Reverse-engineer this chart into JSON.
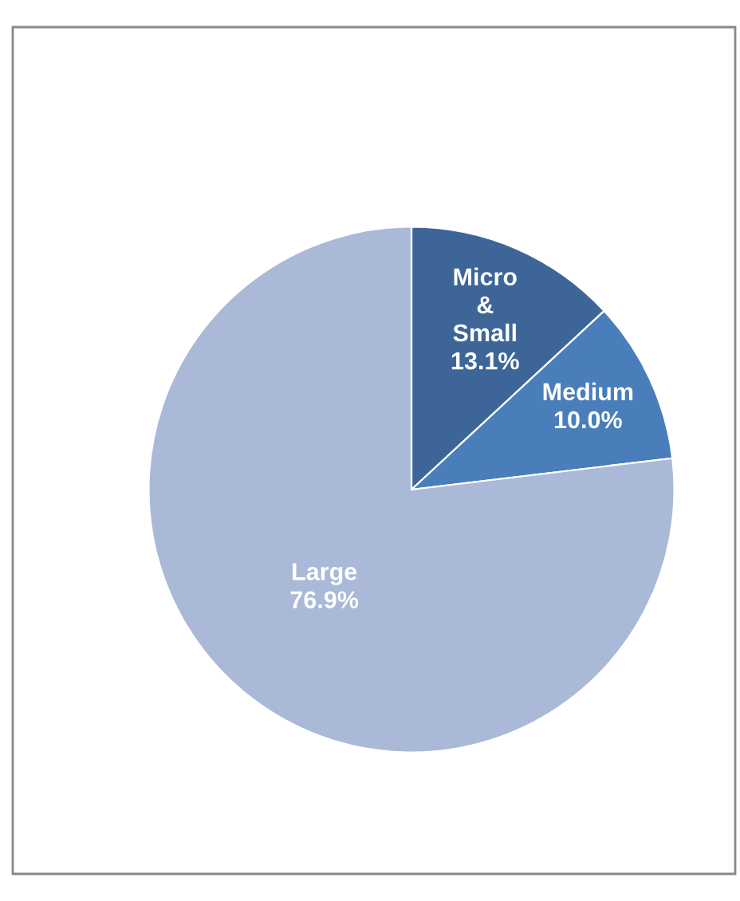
{
  "chart_data": {
    "type": "pie",
    "categories": [
      "Micro & Small",
      "Medium",
      "Large"
    ],
    "values": [
      13.1,
      10.0,
      76.9
    ],
    "value_labels": [
      "13.1%",
      "10.0%",
      "76.9%"
    ],
    "colors": [
      "#3d6598",
      "#4a7ebb",
      "#aab9d7"
    ]
  }
}
